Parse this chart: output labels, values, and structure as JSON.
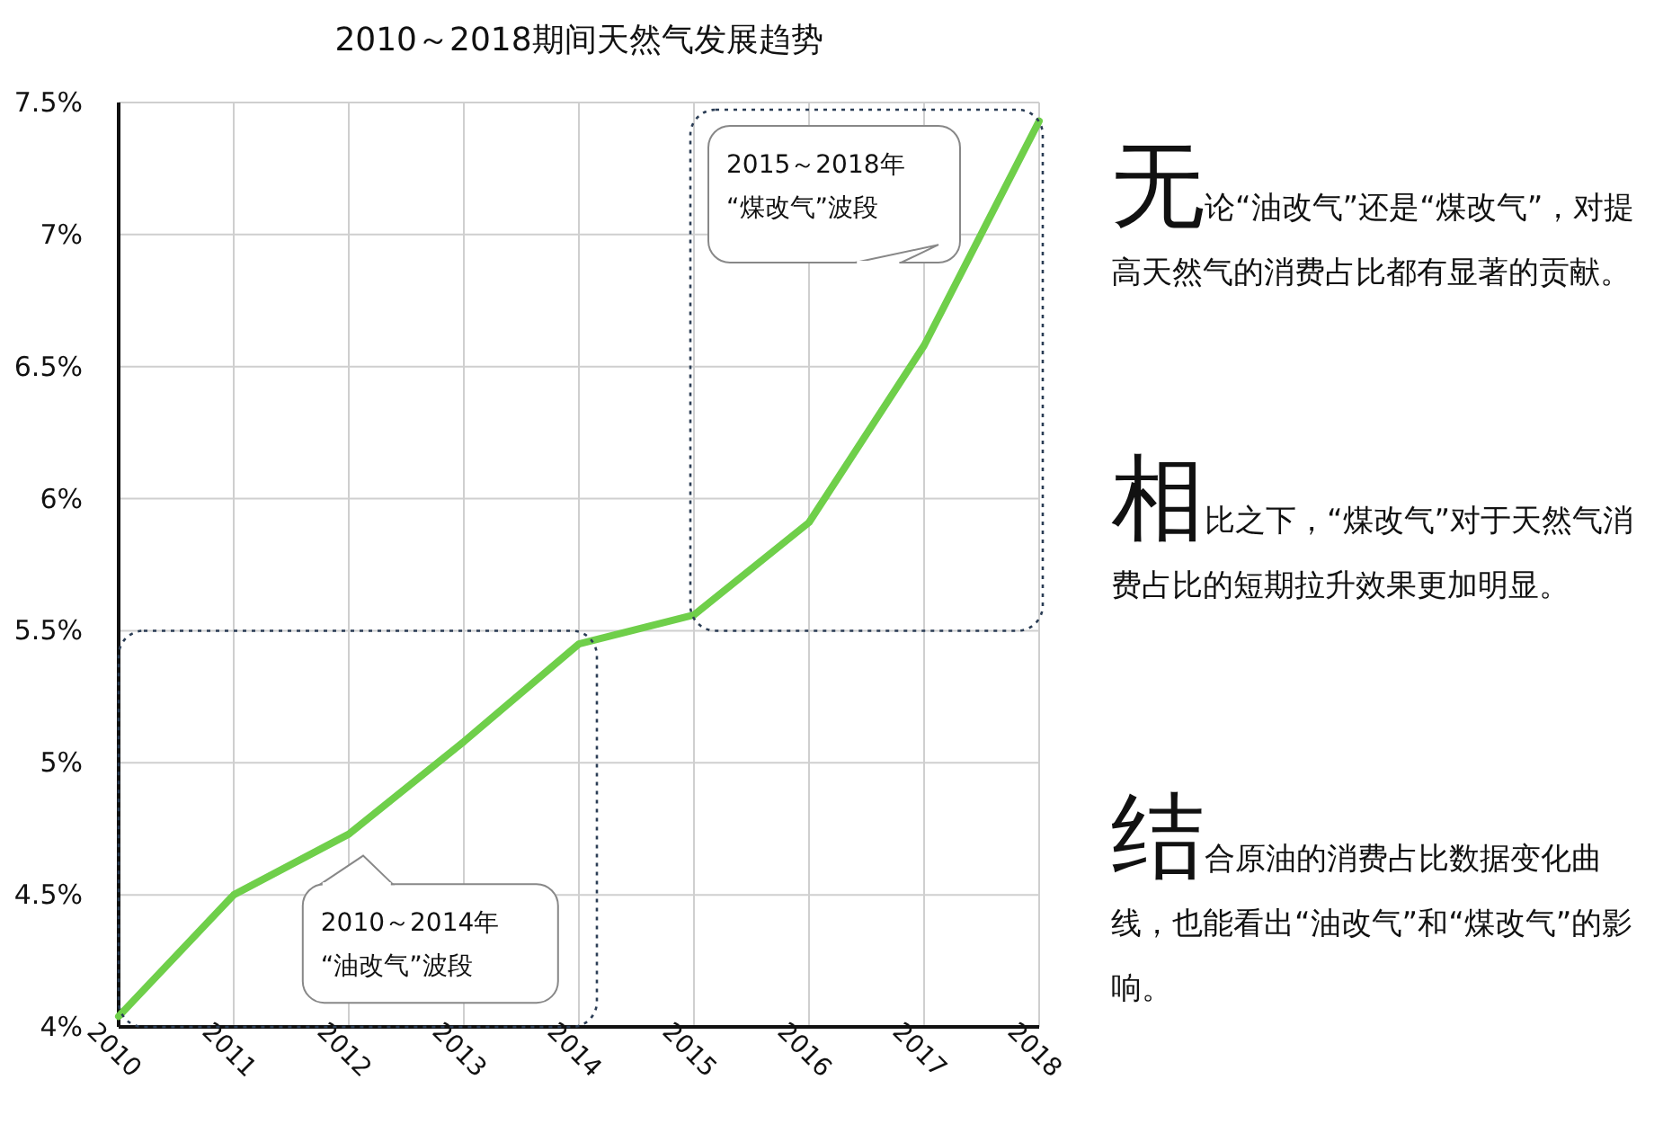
{
  "chart_data": {
    "type": "line",
    "title": "2010～2018期间天然气发展趋势",
    "categories": [
      "2010",
      "2011",
      "2012",
      "2013",
      "2014",
      "2015",
      "2016",
      "2017",
      "2018"
    ],
    "series": [
      {
        "color": "#6fcf4a",
        "values": [
          4.04,
          4.5,
          4.73,
          5.08,
          5.45,
          5.56,
          5.91,
          6.58,
          7.43
        ]
      }
    ],
    "ylim": [
      4,
      7.5
    ],
    "yticks": [
      {
        "value": 4,
        "label": "4%"
      },
      {
        "value": 4.5,
        "label": "4.5%"
      },
      {
        "value": 5,
        "label": "5%"
      },
      {
        "value": 5.5,
        "label": "5.5%"
      },
      {
        "value": 6,
        "label": "6%"
      },
      {
        "value": 6.5,
        "label": "6.5%"
      },
      {
        "value": 7,
        "label": "7%"
      },
      {
        "value": 7.5,
        "label": "7.5%"
      }
    ],
    "grid": true,
    "marker": "none",
    "line_style": "solid",
    "annotations": [
      "2010～2014年\n“油改气”波段",
      "2015～2018年\n“煤改气”波段",
      "无论“油改气”还是“煤改气”，对提高天然气的消费占比都有显著的贡献。",
      "相比之下，“煤改气”对于天然气消费占比的短期拉升效果更加明显。",
      "结合原油的消费占比数据变化曲线，也能看出“油改气”和“煤改气”的影响。"
    ]
  }
}
